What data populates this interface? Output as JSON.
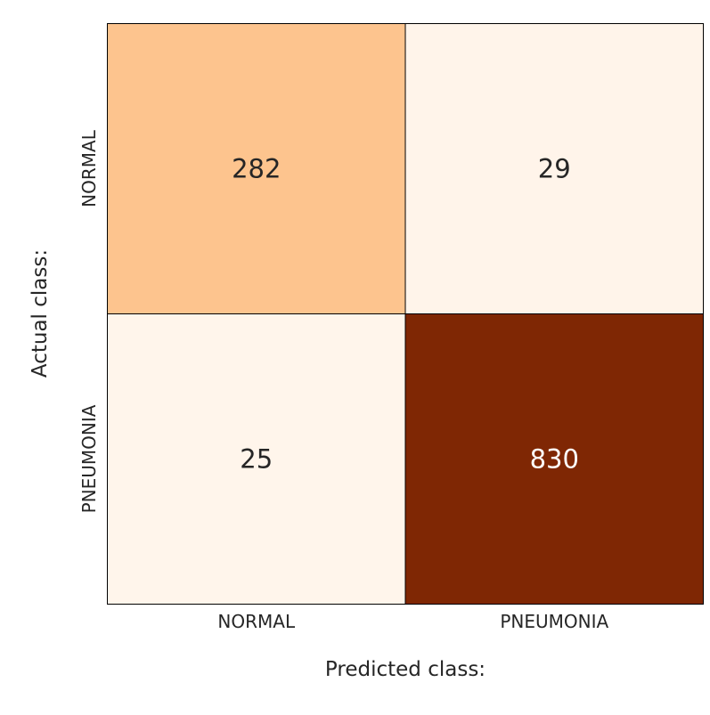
{
  "chart_data": {
    "type": "heatmap",
    "title": "",
    "xlabel": "Predicted class:",
    "ylabel": "Actual class:",
    "x_categories": [
      "NORMAL",
      "PNEUMONIA"
    ],
    "y_categories": [
      "NORMAL",
      "PNEUMONIA"
    ],
    "values": [
      [
        282,
        29
      ],
      [
        25,
        830
      ]
    ],
    "colormap": "Oranges",
    "colorbar": false,
    "grid": false,
    "colors": {
      "low": "#fff5eb",
      "mid": "#fdbe85",
      "high": "#7f2704",
      "text_dark": "#262626",
      "text_light": "#ffffff",
      "cell_border": "#000000"
    }
  }
}
